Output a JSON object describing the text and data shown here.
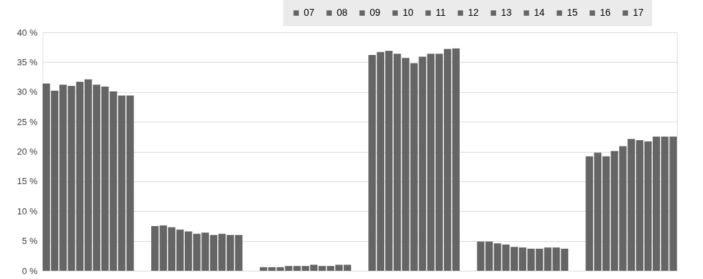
{
  "chart_data": {
    "type": "bar",
    "categories": [
      null,
      null,
      null,
      null,
      null,
      null
    ],
    "series": [
      {
        "name": "07",
        "color": "#656565",
        "values": [
          31.4,
          7.5,
          0.6,
          36.2,
          4.9,
          19.2
        ]
      },
      {
        "name": "08",
        "color": "#656565",
        "values": [
          30.2,
          7.6,
          0.6,
          36.7,
          4.9,
          19.8
        ]
      },
      {
        "name": "09",
        "color": "#656565",
        "values": [
          31.2,
          7.3,
          0.6,
          36.9,
          4.6,
          19.2
        ]
      },
      {
        "name": "10",
        "color": "#656565",
        "values": [
          31.0,
          6.9,
          0.8,
          36.4,
          4.4,
          20.1
        ]
      },
      {
        "name": "11",
        "color": "#656565",
        "values": [
          31.7,
          6.6,
          0.8,
          35.7,
          4.0,
          20.9
        ]
      },
      {
        "name": "12",
        "color": "#656565",
        "values": [
          32.1,
          6.2,
          0.8,
          34.8,
          3.9,
          22.1
        ]
      },
      {
        "name": "13",
        "color": "#656565",
        "values": [
          31.2,
          6.4,
          1.0,
          35.9,
          3.7,
          21.9
        ]
      },
      {
        "name": "14",
        "color": "#656565",
        "values": [
          30.9,
          6.0,
          0.8,
          36.4,
          3.7,
          21.7
        ]
      },
      {
        "name": "15",
        "color": "#656565",
        "values": [
          30.1,
          6.2,
          0.8,
          36.4,
          3.9,
          22.5
        ]
      },
      {
        "name": "16",
        "color": "#656565",
        "values": [
          29.4,
          6.0,
          1.0,
          37.2,
          3.9,
          22.5
        ]
      },
      {
        "name": "17",
        "color": "#656565",
        "values": [
          29.4,
          6.0,
          1.0,
          37.3,
          3.7,
          22.5
        ]
      }
    ],
    "ylim": [
      0,
      40
    ],
    "yticks": [
      {
        "value": 0,
        "label": "0 %"
      },
      {
        "value": 5,
        "label": "5 %"
      },
      {
        "value": 10,
        "label": "10 %"
      },
      {
        "value": 15,
        "label": "15 %"
      },
      {
        "value": 20,
        "label": "20 %"
      },
      {
        "value": 25,
        "label": "25 %"
      },
      {
        "value": 30,
        "label": "30 %"
      },
      {
        "value": 35,
        "label": "35 %"
      },
      {
        "value": 40,
        "label": "40 %"
      }
    ],
    "grid": "y",
    "legend": "top right",
    "tick_labels": "y"
  }
}
